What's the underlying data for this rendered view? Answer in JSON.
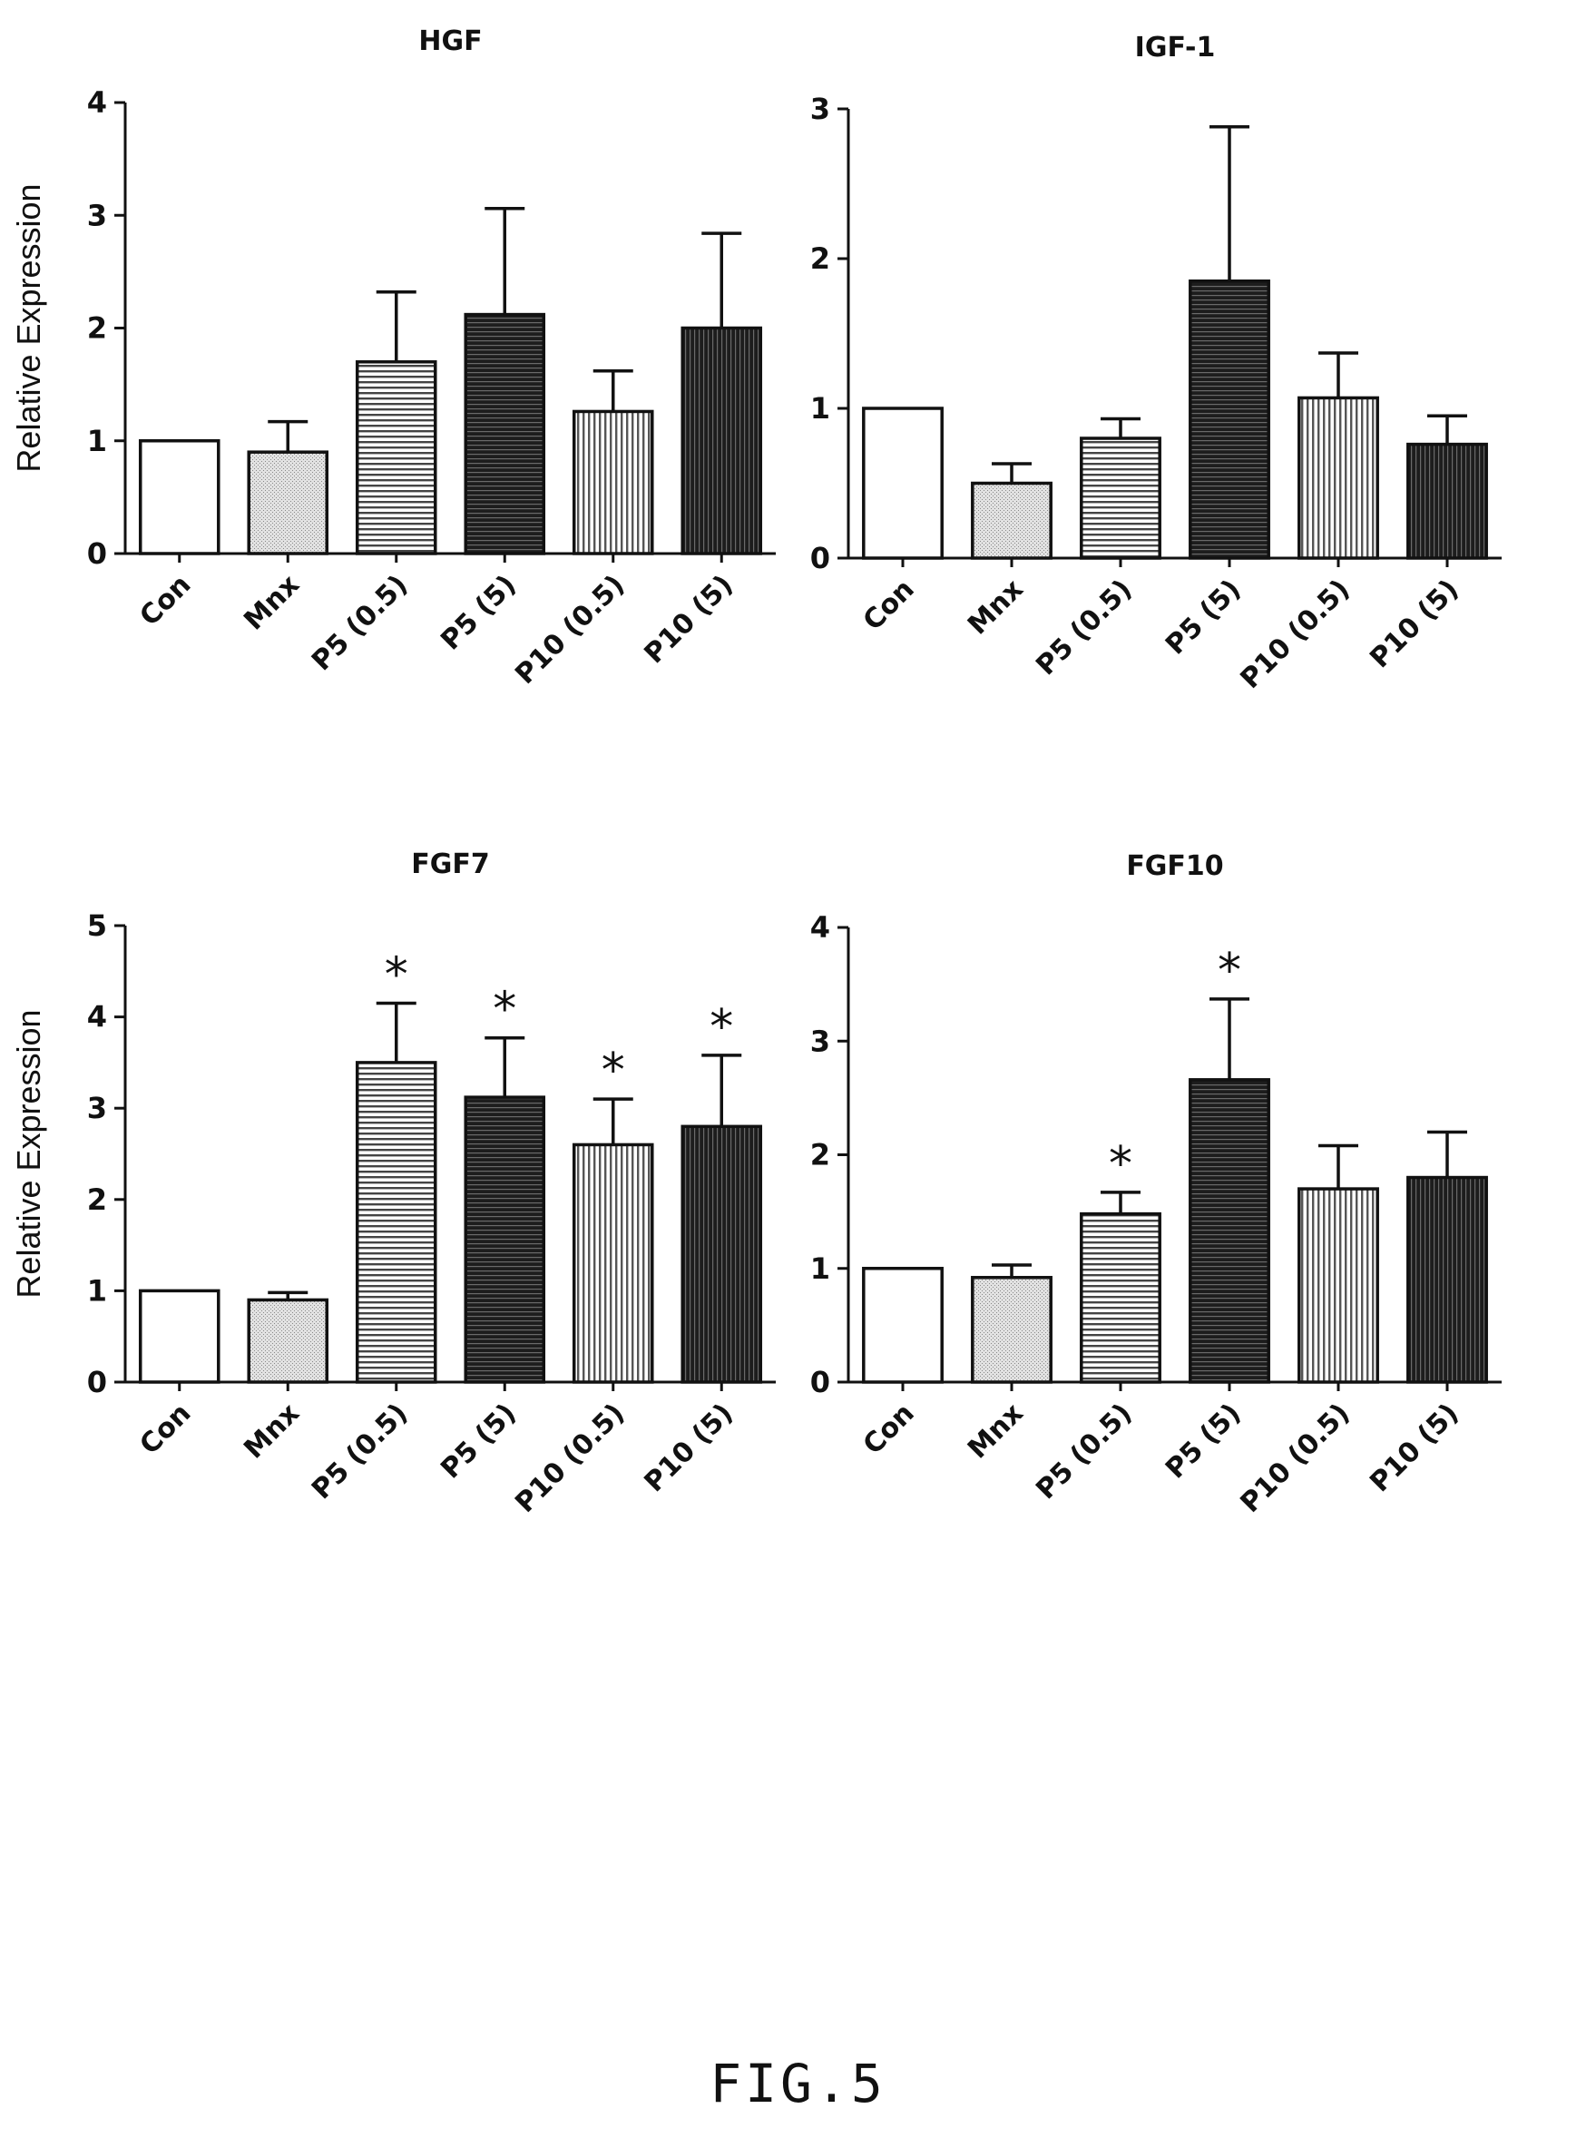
{
  "figure": {
    "label": "FIG.5"
  },
  "chart_data": [
    {
      "type": "bar",
      "title": "HGF",
      "ylabel": "Relative Expression",
      "xlabel": "",
      "ylim": [
        0,
        4
      ],
      "yticks": [
        0,
        1,
        2,
        3,
        4
      ],
      "categories": [
        "Con",
        "Mnx",
        "P5 (0.5)",
        "P5 (5)",
        "P10 (0.5)",
        "P10 (5)"
      ],
      "series": [
        {
          "values": [
            1.0,
            0.9,
            1.7,
            2.12,
            1.26,
            2.0
          ]
        }
      ],
      "error_upper": [
        1.0,
        1.17,
        2.32,
        3.06,
        1.62,
        2.84
      ],
      "significant": [
        false,
        false,
        false,
        false,
        false,
        false
      ]
    },
    {
      "type": "bar",
      "title": "IGF-1",
      "ylabel": "",
      "xlabel": "",
      "ylim": [
        0,
        3
      ],
      "yticks": [
        0,
        1,
        2,
        3
      ],
      "categories": [
        "Con",
        "Mnx",
        "P5 (0.5)",
        "P5 (5)",
        "P10 (0.5)",
        "P10 (5)"
      ],
      "series": [
        {
          "values": [
            1.0,
            0.5,
            0.8,
            1.85,
            1.07,
            0.76
          ]
        }
      ],
      "error_upper": [
        1.0,
        0.63,
        0.93,
        2.88,
        1.37,
        0.95
      ],
      "significant": [
        false,
        false,
        false,
        false,
        false,
        false
      ]
    },
    {
      "type": "bar",
      "title": "FGF7",
      "ylabel": "Relative Expression",
      "xlabel": "",
      "ylim": [
        0,
        5
      ],
      "yticks": [
        0,
        1,
        2,
        3,
        4,
        5
      ],
      "categories": [
        "Con",
        "Mnx",
        "P5 (0.5)",
        "P5 (5)",
        "P10 (0.5)",
        "P10 (5)"
      ],
      "series": [
        {
          "values": [
            1.0,
            0.9,
            3.5,
            3.12,
            2.6,
            2.8
          ]
        }
      ],
      "error_upper": [
        1.0,
        0.98,
        4.15,
        3.77,
        3.1,
        3.58
      ],
      "significant": [
        false,
        false,
        true,
        true,
        true,
        true
      ],
      "significance_mark": "*"
    },
    {
      "type": "bar",
      "title": "FGF10",
      "ylabel": "",
      "xlabel": "",
      "ylim": [
        0,
        4
      ],
      "yticks": [
        0,
        1,
        2,
        3,
        4
      ],
      "categories": [
        "Con",
        "Mnx",
        "P5 (0.5)",
        "P5 (5)",
        "P10 (0.5)",
        "P10 (5)"
      ],
      "series": [
        {
          "values": [
            1.0,
            0.92,
            1.48,
            2.66,
            1.7,
            1.8
          ]
        }
      ],
      "error_upper": [
        1.0,
        1.03,
        1.67,
        3.37,
        2.08,
        2.2
      ],
      "significant": [
        false,
        false,
        true,
        true,
        false,
        false
      ],
      "significance_mark": "*"
    }
  ],
  "bar_styles": [
    "white",
    "light-dotted",
    "horizontal-stripes",
    "dark-horizontal",
    "vertical-stripes",
    "dark-vertical"
  ],
  "colors": {
    "axis": "#111111",
    "bar_edge": "#111111",
    "light_fill": "#d6d6d6",
    "dark_fill": "#2b2b2b"
  }
}
